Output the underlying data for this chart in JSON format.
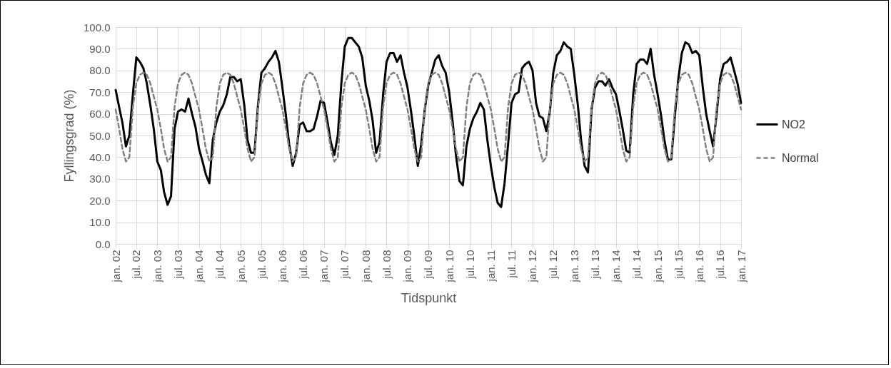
{
  "chart_data": {
    "type": "line",
    "xlabel": "Tidspunkt",
    "ylabel": "Fyllingsgrad (%)",
    "x": [
      "2002-01",
      "2002-02",
      "2002-03",
      "2002-04",
      "2002-05",
      "2002-06",
      "2002-07",
      "2002-08",
      "2002-09",
      "2002-10",
      "2002-11",
      "2002-12",
      "2003-01",
      "2003-02",
      "2003-03",
      "2003-04",
      "2003-05",
      "2003-06",
      "2003-07",
      "2003-08",
      "2003-09",
      "2003-10",
      "2003-11",
      "2003-12",
      "2004-01",
      "2004-02",
      "2004-03",
      "2004-04",
      "2004-05",
      "2004-06",
      "2004-07",
      "2004-08",
      "2004-09",
      "2004-10",
      "2004-11",
      "2004-12",
      "2005-01",
      "2005-02",
      "2005-03",
      "2005-04",
      "2005-05",
      "2005-06",
      "2005-07",
      "2005-08",
      "2005-09",
      "2005-10",
      "2005-11",
      "2005-12",
      "2006-01",
      "2006-02",
      "2006-03",
      "2006-04",
      "2006-05",
      "2006-06",
      "2006-07",
      "2006-08",
      "2006-09",
      "2006-10",
      "2006-11",
      "2006-12",
      "2007-01",
      "2007-02",
      "2007-03",
      "2007-04",
      "2007-05",
      "2007-06",
      "2007-07",
      "2007-08",
      "2007-09",
      "2007-10",
      "2007-11",
      "2007-12",
      "2008-01",
      "2008-02",
      "2008-03",
      "2008-04",
      "2008-05",
      "2008-06",
      "2008-07",
      "2008-08",
      "2008-09",
      "2008-10",
      "2008-11",
      "2008-12",
      "2009-01",
      "2009-02",
      "2009-03",
      "2009-04",
      "2009-05",
      "2009-06",
      "2009-07",
      "2009-08",
      "2009-09",
      "2009-10",
      "2009-11",
      "2009-12",
      "2010-01",
      "2010-02",
      "2010-03",
      "2010-04",
      "2010-05",
      "2010-06",
      "2010-07",
      "2010-08",
      "2010-09",
      "2010-10",
      "2010-11",
      "2010-12",
      "2011-01",
      "2011-02",
      "2011-03",
      "2011-04",
      "2011-05",
      "2011-06",
      "2011-07",
      "2011-08",
      "2011-09",
      "2011-10",
      "2011-11",
      "2011-12",
      "2012-01",
      "2012-02",
      "2012-03",
      "2012-04",
      "2012-05",
      "2012-06",
      "2012-07",
      "2012-08",
      "2012-09",
      "2012-10",
      "2012-11",
      "2012-12",
      "2013-01",
      "2013-02",
      "2013-03",
      "2013-04",
      "2013-05",
      "2013-06",
      "2013-07",
      "2013-08",
      "2013-09",
      "2013-10",
      "2013-11",
      "2013-12",
      "2014-01",
      "2014-02",
      "2014-03",
      "2014-04",
      "2014-05",
      "2014-06",
      "2014-07",
      "2014-08",
      "2014-09",
      "2014-10",
      "2014-11",
      "2014-12",
      "2015-01",
      "2015-02",
      "2015-03",
      "2015-04",
      "2015-05",
      "2015-06",
      "2015-07",
      "2015-08",
      "2015-09",
      "2015-10",
      "2015-11",
      "2015-12",
      "2016-01",
      "2016-02",
      "2016-03",
      "2016-04",
      "2016-05",
      "2016-06",
      "2016-07",
      "2016-08",
      "2016-09",
      "2016-10",
      "2016-11",
      "2016-12",
      "2017-01"
    ],
    "series": [
      {
        "name": "NO2",
        "color": "#000000",
        "line_style": "solid",
        "values": [
          71,
          63,
          56,
          45,
          50,
          69,
          86,
          84,
          81,
          74,
          64,
          53,
          38,
          34,
          24,
          18,
          22,
          53,
          61,
          62,
          61,
          67,
          60,
          54,
          44,
          38,
          32,
          28,
          48,
          56,
          61,
          64,
          69,
          77,
          77,
          75,
          76,
          64,
          48,
          42,
          42,
          64,
          79,
          81,
          84,
          86,
          89,
          84,
          72,
          59,
          46,
          36,
          42,
          55,
          56,
          52,
          52,
          53,
          59,
          66,
          65,
          56,
          47,
          41,
          50,
          74,
          91,
          95,
          95,
          93,
          91,
          86,
          73,
          66,
          57,
          42,
          47,
          69,
          84,
          88,
          88,
          84,
          87,
          79,
          72,
          61,
          50,
          36,
          46,
          62,
          73,
          79,
          85,
          87,
          82,
          79,
          70,
          56,
          41,
          29,
          27,
          45,
          53,
          58,
          61,
          65,
          62,
          48,
          36,
          26,
          19,
          17,
          28,
          46,
          65,
          69,
          70,
          81,
          83,
          84,
          80,
          65,
          59,
          58,
          52,
          61,
          79,
          87,
          89,
          93,
          91,
          90,
          78,
          64,
          48,
          36,
          33,
          62,
          72,
          75,
          75,
          73,
          76,
          72,
          69,
          61,
          53,
          43,
          42,
          69,
          83,
          85,
          85,
          83,
          90,
          78,
          69,
          59,
          48,
          39,
          39,
          59,
          76,
          88,
          93,
          92,
          88,
          89,
          87,
          72,
          60,
          52,
          45,
          60,
          76,
          83,
          84,
          86,
          80,
          74,
          65
        ]
      },
      {
        "name": "Normal",
        "color": "#808080",
        "line_style": "dashed",
        "values": [
          62,
          53,
          44,
          38,
          40,
          63,
          74,
          78,
          79,
          78,
          74,
          68,
          62,
          53,
          44,
          38,
          40,
          63,
          74,
          78,
          79,
          78,
          74,
          68,
          62,
          53,
          44,
          38,
          40,
          63,
          74,
          78,
          79,
          78,
          74,
          68,
          62,
          53,
          44,
          38,
          40,
          63,
          74,
          78,
          79,
          78,
          74,
          68,
          62,
          53,
          44,
          38,
          40,
          63,
          74,
          78,
          79,
          78,
          74,
          68,
          62,
          53,
          44,
          38,
          40,
          63,
          74,
          78,
          79,
          78,
          74,
          68,
          62,
          53,
          44,
          38,
          40,
          63,
          74,
          78,
          79,
          78,
          74,
          68,
          62,
          53,
          44,
          38,
          40,
          63,
          74,
          78,
          79,
          78,
          74,
          68,
          62,
          53,
          44,
          38,
          40,
          63,
          74,
          78,
          79,
          78,
          74,
          68,
          62,
          53,
          44,
          38,
          40,
          63,
          74,
          78,
          79,
          78,
          74,
          68,
          62,
          53,
          44,
          38,
          40,
          63,
          74,
          78,
          79,
          78,
          74,
          68,
          62,
          53,
          44,
          38,
          40,
          63,
          74,
          78,
          79,
          78,
          74,
          68,
          62,
          53,
          44,
          38,
          40,
          63,
          74,
          78,
          79,
          78,
          74,
          68,
          62,
          53,
          44,
          38,
          40,
          63,
          74,
          78,
          79,
          78,
          74,
          68,
          62,
          53,
          44,
          38,
          40,
          63,
          74,
          78,
          79,
          78,
          74,
          68,
          62
        ]
      }
    ],
    "xlim": [
      "2002-01",
      "2017-01"
    ],
    "xticks": [
      {
        "value": "2002-01",
        "label": "jan. 02"
      },
      {
        "value": "2002-07",
        "label": "jul. 02"
      },
      {
        "value": "2003-01",
        "label": "jan. 03"
      },
      {
        "value": "2003-07",
        "label": "jul. 03"
      },
      {
        "value": "2004-01",
        "label": "jan. 04"
      },
      {
        "value": "2004-07",
        "label": "jul. 04"
      },
      {
        "value": "2005-01",
        "label": "jan. 05"
      },
      {
        "value": "2005-07",
        "label": "jul. 05"
      },
      {
        "value": "2006-01",
        "label": "jan. 06"
      },
      {
        "value": "2006-07",
        "label": "jul. 06"
      },
      {
        "value": "2007-01",
        "label": "jan. 07"
      },
      {
        "value": "2007-07",
        "label": "jul. 07"
      },
      {
        "value": "2008-01",
        "label": "jan. 08"
      },
      {
        "value": "2008-07",
        "label": "jul. 08"
      },
      {
        "value": "2009-01",
        "label": "jan. 09"
      },
      {
        "value": "2009-07",
        "label": "jul. 09"
      },
      {
        "value": "2010-01",
        "label": "jan. 10"
      },
      {
        "value": "2010-07",
        "label": "jul. 10"
      },
      {
        "value": "2011-01",
        "label": "jan. 11"
      },
      {
        "value": "2011-07",
        "label": "jul. 11"
      },
      {
        "value": "2012-01",
        "label": "jan. 12"
      },
      {
        "value": "2012-07",
        "label": "jul. 12"
      },
      {
        "value": "2013-01",
        "label": "jan. 13"
      },
      {
        "value": "2013-07",
        "label": "jul. 13"
      },
      {
        "value": "2014-01",
        "label": "jan. 14"
      },
      {
        "value": "2014-07",
        "label": "jul. 14"
      },
      {
        "value": "2015-01",
        "label": "jan. 15"
      },
      {
        "value": "2015-07",
        "label": "jul. 15"
      },
      {
        "value": "2016-01",
        "label": "jan. 16"
      },
      {
        "value": "2016-07",
        "label": "jul. 16"
      },
      {
        "value": "2017-01",
        "label": "jan. 17"
      }
    ],
    "ylim": [
      0,
      100
    ],
    "yticks": [
      {
        "value": 0,
        "label": "0.0"
      },
      {
        "value": 10,
        "label": "10.0"
      },
      {
        "value": 20,
        "label": "20.0"
      },
      {
        "value": 30,
        "label": "30.0"
      },
      {
        "value": 40,
        "label": "40.0"
      },
      {
        "value": 50,
        "label": "50.0"
      },
      {
        "value": 60,
        "label": "60.0"
      },
      {
        "value": 70,
        "label": "70.0"
      },
      {
        "value": 80,
        "label": "80.0"
      },
      {
        "value": 90,
        "label": "90.0"
      },
      {
        "value": 100,
        "label": "100.0"
      }
    ],
    "grid": true,
    "legend": "right"
  }
}
